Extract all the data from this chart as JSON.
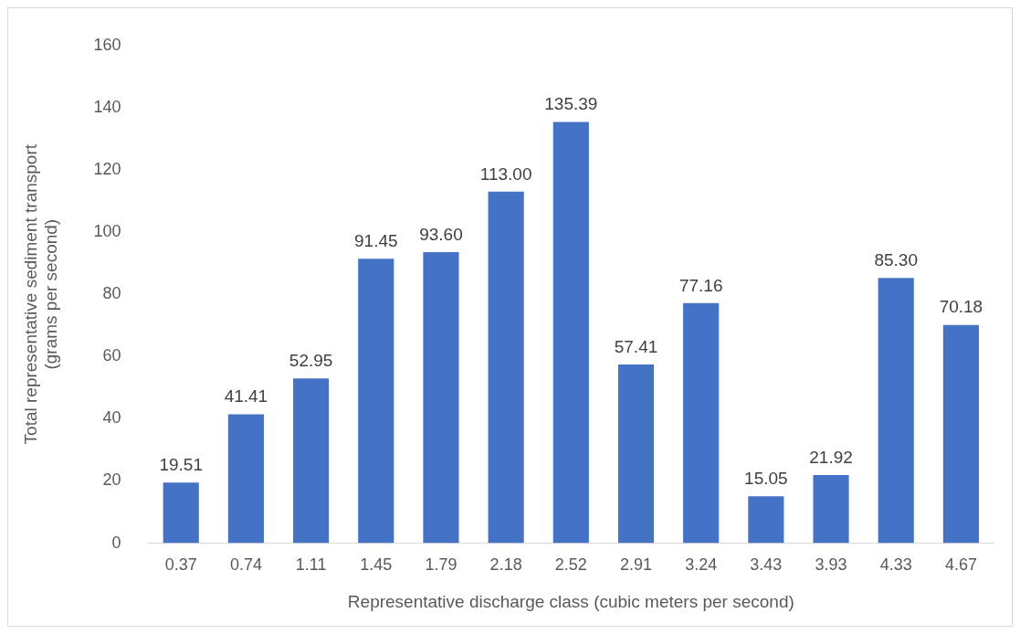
{
  "chart_data": {
    "type": "bar",
    "xlabel": "Representative discharge class (cubic meters per second)",
    "ylabel": "Total representative sediment transport\n(grams per second)",
    "categories": [
      "0.37",
      "0.74",
      "1.11",
      "1.45",
      "1.79",
      "2.18",
      "2.52",
      "2.91",
      "3.24",
      "3.43",
      "3.93",
      "4.33",
      "4.67"
    ],
    "values": [
      19.51,
      41.41,
      52.95,
      91.45,
      93.6,
      113,
      135.39,
      57.41,
      77.16,
      15.05,
      21.92,
      85.3,
      70.18
    ],
    "value_labels": [
      "19.51",
      "41.41",
      "52.95",
      "91.45",
      "93.60",
      "113.00",
      "135.39",
      "57.41",
      "77.16",
      "15.05",
      "21.92",
      "85.30",
      "70.18"
    ],
    "color": "#4472c4",
    "ylim": [
      0,
      160
    ],
    "yticks": [
      0,
      20,
      40,
      60,
      80,
      100,
      120,
      140,
      160
    ],
    "grid": false,
    "legend": false
  }
}
